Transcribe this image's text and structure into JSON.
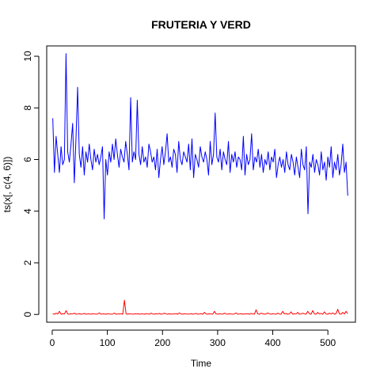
{
  "chart_data": {
    "type": "line",
    "title": "FRUTERIA Y VERD",
    "xlabel": "Time",
    "ylabel": "ts(x[, c(4, 6)])",
    "xlim": [
      -10,
      550
    ],
    "ylim": [
      -0.3,
      10.4
    ],
    "x_ticks": [
      "0",
      "100",
      "200",
      "300",
      "400",
      "500"
    ],
    "y_ticks": [
      "0",
      "2",
      "4",
      "6",
      "8",
      "10"
    ],
    "grid": false,
    "legend": "none",
    "series": [
      {
        "color": "#0000FF",
        "x_start": 1,
        "x_end": 536,
        "approx_values": [
          7.6,
          5.5,
          6.9,
          6.2,
          5.5,
          6.5,
          5.8,
          6.0,
          10.1,
          6.3,
          5.9,
          6.6,
          7.4,
          5.1,
          6.8,
          8.8,
          6.2,
          5.7,
          6.5,
          5.4,
          6.3,
          5.9,
          6.6,
          6.0,
          5.6,
          6.4,
          5.9,
          6.2,
          5.8,
          6.1,
          6.5,
          3.7,
          6.0,
          5.4,
          6.3,
          5.9,
          6.6,
          6.0,
          6.8,
          6.2,
          5.7,
          6.4,
          6.1,
          5.9,
          6.7,
          6.2,
          5.6,
          8.4,
          5.9,
          6.3,
          6.0,
          8.3,
          6.2,
          5.8,
          6.5,
          5.9,
          6.1,
          5.7,
          6.6,
          6.3,
          5.9,
          6.1,
          5.6,
          6.4,
          5.3,
          6.0,
          6.5,
          5.8,
          6.3,
          7.0,
          5.9,
          6.1,
          5.7,
          6.4,
          6.2,
          5.5,
          6.7,
          6.0,
          5.8,
          6.3,
          6.1,
          5.9,
          6.6,
          5.6,
          6.8,
          5.3,
          6.2,
          6.0,
          5.7,
          6.5,
          6.1,
          5.9,
          6.3,
          6.0,
          5.4,
          6.7,
          5.8,
          6.2,
          7.8,
          6.1,
          5.9,
          6.4,
          5.6,
          6.3,
          6.0,
          5.8,
          6.7,
          5.5,
          6.2,
          5.9,
          6.3,
          5.7,
          6.1,
          6.0,
          5.6,
          6.9,
          5.4,
          6.2,
          5.8,
          6.0,
          7.0,
          5.6,
          6.1,
          5.9,
          6.4,
          5.7,
          6.2,
          5.5,
          6.0,
          5.8,
          6.3,
          5.6,
          6.1,
          5.9,
          6.4,
          5.3,
          5.8,
          6.1,
          5.7,
          6.0,
          5.5,
          6.3,
          5.8,
          5.6,
          6.2,
          5.9,
          5.4,
          6.1,
          5.7,
          5.3,
          6.4,
          5.8,
          5.6,
          6.5,
          3.9,
          5.9,
          5.7,
          6.2,
          5.5,
          6.0,
          5.8,
          5.4,
          6.3,
          5.6,
          5.9,
          5.2,
          6.1,
          5.7,
          6.5,
          5.3,
          5.9,
          5.6,
          6.2,
          5.4,
          5.8,
          6.6,
          5.5,
          5.9,
          4.6
        ]
      },
      {
        "color": "#FF0000",
        "x_start": 1,
        "x_end": 536,
        "approx_values": [
          0.03,
          0.01,
          0.05,
          0.02,
          0.12,
          0.01,
          0.03,
          0.02,
          0.15,
          0.02,
          0.01,
          0.03,
          0.02,
          0.05,
          0.01,
          0.02,
          0.03,
          0.01,
          0.02,
          0.04,
          0.01,
          0.02,
          0.02,
          0.01,
          0.03,
          0.02,
          0.01,
          0.02,
          0.06,
          0.01,
          0.02,
          0.02,
          0.01,
          0.03,
          0.02,
          0.01,
          0.02,
          0.05,
          0.01,
          0.02,
          0.02,
          0.03,
          0.01,
          0.55,
          0.02,
          0.01,
          0.03,
          0.02,
          0.01,
          0.02,
          0.02,
          0.03,
          0.01,
          0.02,
          0.02,
          0.01,
          0.03,
          0.02,
          0.01,
          0.05,
          0.02,
          0.01,
          0.03,
          0.02,
          0.04,
          0.01,
          0.02,
          0.05,
          0.02,
          0.01,
          0.03,
          0.01,
          0.02,
          0.02,
          0.03,
          0.01,
          0.06,
          0.02,
          0.01,
          0.03,
          0.02,
          0.01,
          0.02,
          0.03,
          0.01,
          0.02,
          0.04,
          0.01,
          0.02,
          0.03,
          0.01,
          0.08,
          0.02,
          0.01,
          0.03,
          0.02,
          0.01,
          0.12,
          0.02,
          0.01,
          0.03,
          0.02,
          0.01,
          0.05,
          0.02,
          0.01,
          0.03,
          0.02,
          0.01,
          0.02,
          0.06,
          0.01,
          0.02,
          0.03,
          0.01,
          0.02,
          0.02,
          0.03,
          0.01,
          0.04,
          0.02,
          0.01,
          0.18,
          0.02,
          0.01,
          0.05,
          0.03,
          0.01,
          0.02,
          0.06,
          0.02,
          0.01,
          0.03,
          0.02,
          0.01,
          0.05,
          0.02,
          0.01,
          0.12,
          0.02,
          0.04,
          0.01,
          0.02,
          0.1,
          0.01,
          0.03,
          0.02,
          0.08,
          0.01,
          0.02,
          0.05,
          0.02,
          0.01,
          0.12,
          0.03,
          0.01,
          0.15,
          0.02,
          0.01,
          0.08,
          0.02,
          0.04,
          0.01,
          0.1,
          0.02,
          0.01,
          0.05,
          0.02,
          0.06,
          0.01,
          0.03,
          0.2,
          0.02,
          0.01,
          0.08,
          0.02,
          0.12,
          0.03
        ]
      }
    ]
  }
}
